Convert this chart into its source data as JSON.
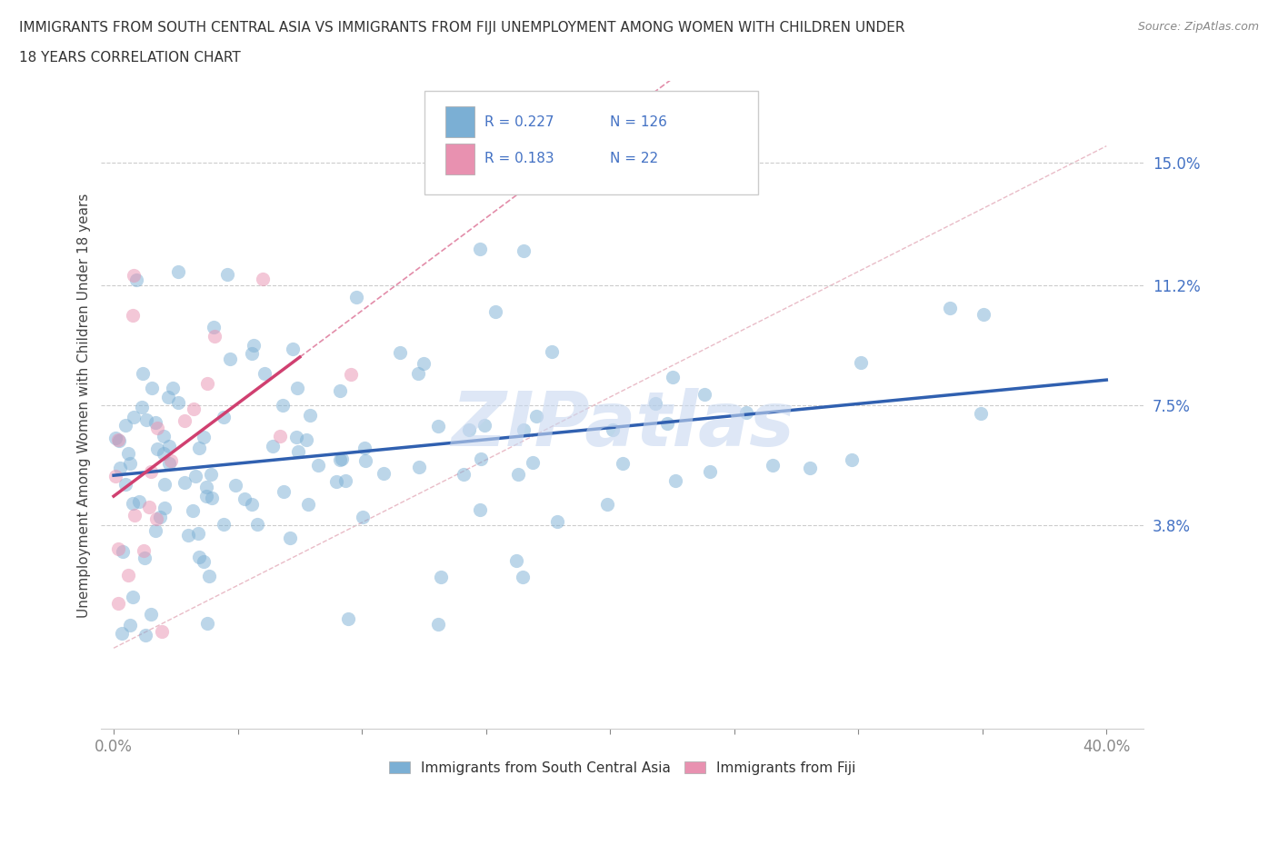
{
  "title_line1": "IMMIGRANTS FROM SOUTH CENTRAL ASIA VS IMMIGRANTS FROM FIJI UNEMPLOYMENT AMONG WOMEN WITH CHILDREN UNDER",
  "title_line2": "18 YEARS CORRELATION CHART",
  "source": "Source: ZipAtlas.com",
  "ylabel": "Unemployment Among Women with Children Under 18 years",
  "xlim": [
    -0.005,
    0.415
  ],
  "ylim": [
    -0.025,
    0.175
  ],
  "xtick_positions": [
    0.0,
    0.05,
    0.1,
    0.15,
    0.2,
    0.25,
    0.3,
    0.35,
    0.4
  ],
  "xtick_labels": [
    "0.0%",
    "",
    "",
    "",
    "",
    "",
    "",
    "",
    "40.0%"
  ],
  "ytick_positions": [
    0.038,
    0.075,
    0.112,
    0.15
  ],
  "ytick_labels": [
    "3.8%",
    "7.5%",
    "11.2%",
    "15.0%"
  ],
  "R_blue": 0.227,
  "N_blue": 126,
  "R_pink": 0.183,
  "N_pink": 22,
  "color_blue_scatter": "#7bafd4",
  "color_pink_scatter": "#e891b0",
  "color_blue_line": "#3060b0",
  "color_pink_line": "#d04070",
  "color_diag_line": "#e0a0b0",
  "color_blue_text": "#4472c4",
  "color_grid": "#cccccc",
  "legend_label_blue": "Immigrants from South Central Asia",
  "legend_label_pink": "Immigrants from Fiji",
  "watermark": "ZIPatlas",
  "watermark_color": "#c8d8f0",
  "watermark_fontsize": 60
}
